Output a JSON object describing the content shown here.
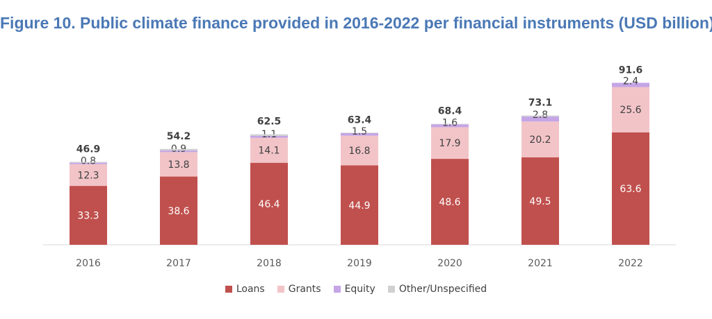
{
  "chart_data": {
    "type": "bar",
    "stacked": true,
    "title": "Figure 10. Public climate finance provided in 2016-2022 per financial instruments (USD billion)",
    "categories": [
      "2016",
      "2017",
      "2018",
      "2019",
      "2020",
      "2021",
      "2022"
    ],
    "series": [
      {
        "name": "Loans",
        "color": "#c0504d",
        "values": [
          33.3,
          38.6,
          46.4,
          44.9,
          48.6,
          49.5,
          63.6
        ],
        "labels": [
          "33.3",
          "38.6",
          "46.4",
          "44.9",
          "48.6",
          "49.5",
          "63.6"
        ]
      },
      {
        "name": "Grants",
        "color": "#f2c4c8",
        "values": [
          12.3,
          13.8,
          14.1,
          16.8,
          17.9,
          20.2,
          25.6
        ],
        "labels": [
          "12.3",
          "13.8",
          "14.1",
          "16.8",
          "17.9",
          "20.2",
          "25.6"
        ]
      },
      {
        "name": "Equity",
        "color": "#c5a5e6",
        "values": [
          0.8,
          0.9,
          1.1,
          1.5,
          1.6,
          2.8,
          2.4
        ],
        "labels": [
          "0.8",
          "0.9",
          "1.1",
          "1.5",
          "1.6",
          "2.8",
          "2.4"
        ]
      },
      {
        "name": "Other/Unspecified",
        "color": "#d0d0d0",
        "values": [
          0.5,
          0.9,
          0.9,
          0.2,
          0.3,
          0.6,
          0.0
        ]
      }
    ],
    "totals": [
      "46.9",
      "54.2",
      "62.5",
      "63.4",
      "68.4",
      "73.1",
      "91.6"
    ],
    "ylim": [
      0,
      100
    ],
    "grid": false,
    "legend_position": "bottom"
  }
}
